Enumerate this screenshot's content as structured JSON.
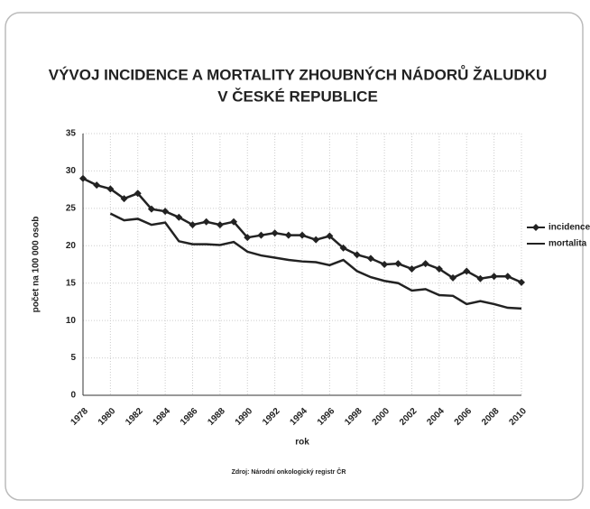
{
  "chart_data": {
    "type": "line",
    "title": [
      "VÝVOJ INCIDENCE A MORTALITY ZHOUBNÝCH  NÁDORŮ ŽALUDKU",
      "V ČESKÉ REPUBLICE"
    ],
    "x_label": "rok",
    "y_label": "počet na 100 000 osob",
    "source": "Zdroj: Národní onkologický  registr ČR",
    "x": [
      1978,
      1979,
      1980,
      1981,
      1982,
      1983,
      1984,
      1985,
      1986,
      1987,
      1988,
      1989,
      1990,
      1991,
      1992,
      1993,
      1994,
      1995,
      1996,
      1997,
      1998,
      1999,
      2000,
      2001,
      2002,
      2003,
      2004,
      2005,
      2006,
      2007,
      2008,
      2009,
      2010
    ],
    "series": [
      {
        "name": "incidence",
        "color": "#222222",
        "marker": "diamond",
        "values": [
          29.0,
          28.1,
          27.6,
          26.3,
          27.0,
          24.9,
          24.6,
          23.8,
          22.8,
          23.2,
          22.8,
          23.2,
          21.1,
          21.4,
          21.7,
          21.4,
          21.4,
          20.8,
          21.3,
          19.7,
          18.8,
          18.3,
          17.5,
          17.6,
          16.9,
          17.6,
          16.9,
          15.7,
          16.6,
          15.6,
          15.9,
          15.9,
          15.1
        ]
      },
      {
        "name": "mortalita",
        "color": "#222222",
        "marker": "none",
        "values": [
          null,
          null,
          24.3,
          23.4,
          23.6,
          22.8,
          23.1,
          20.6,
          20.2,
          20.2,
          20.1,
          20.5,
          19.2,
          18.7,
          18.4,
          18.1,
          17.9,
          17.8,
          17.4,
          18.1,
          16.6,
          15.8,
          15.3,
          15.0,
          14.0,
          14.2,
          13.4,
          13.3,
          12.2,
          12.6,
          12.2,
          11.7,
          11.6
        ]
      }
    ],
    "xlim": [
      1978,
      2010
    ],
    "xticks": [
      1978,
      1980,
      1982,
      1984,
      1986,
      1988,
      1990,
      1992,
      1994,
      1996,
      1998,
      2000,
      2002,
      2004,
      2006,
      2008,
      2010
    ],
    "ylim": [
      0,
      35
    ],
    "yticks": [
      0,
      5,
      10,
      15,
      20,
      25,
      30,
      35
    ],
    "grid": true,
    "legend": "right"
  }
}
